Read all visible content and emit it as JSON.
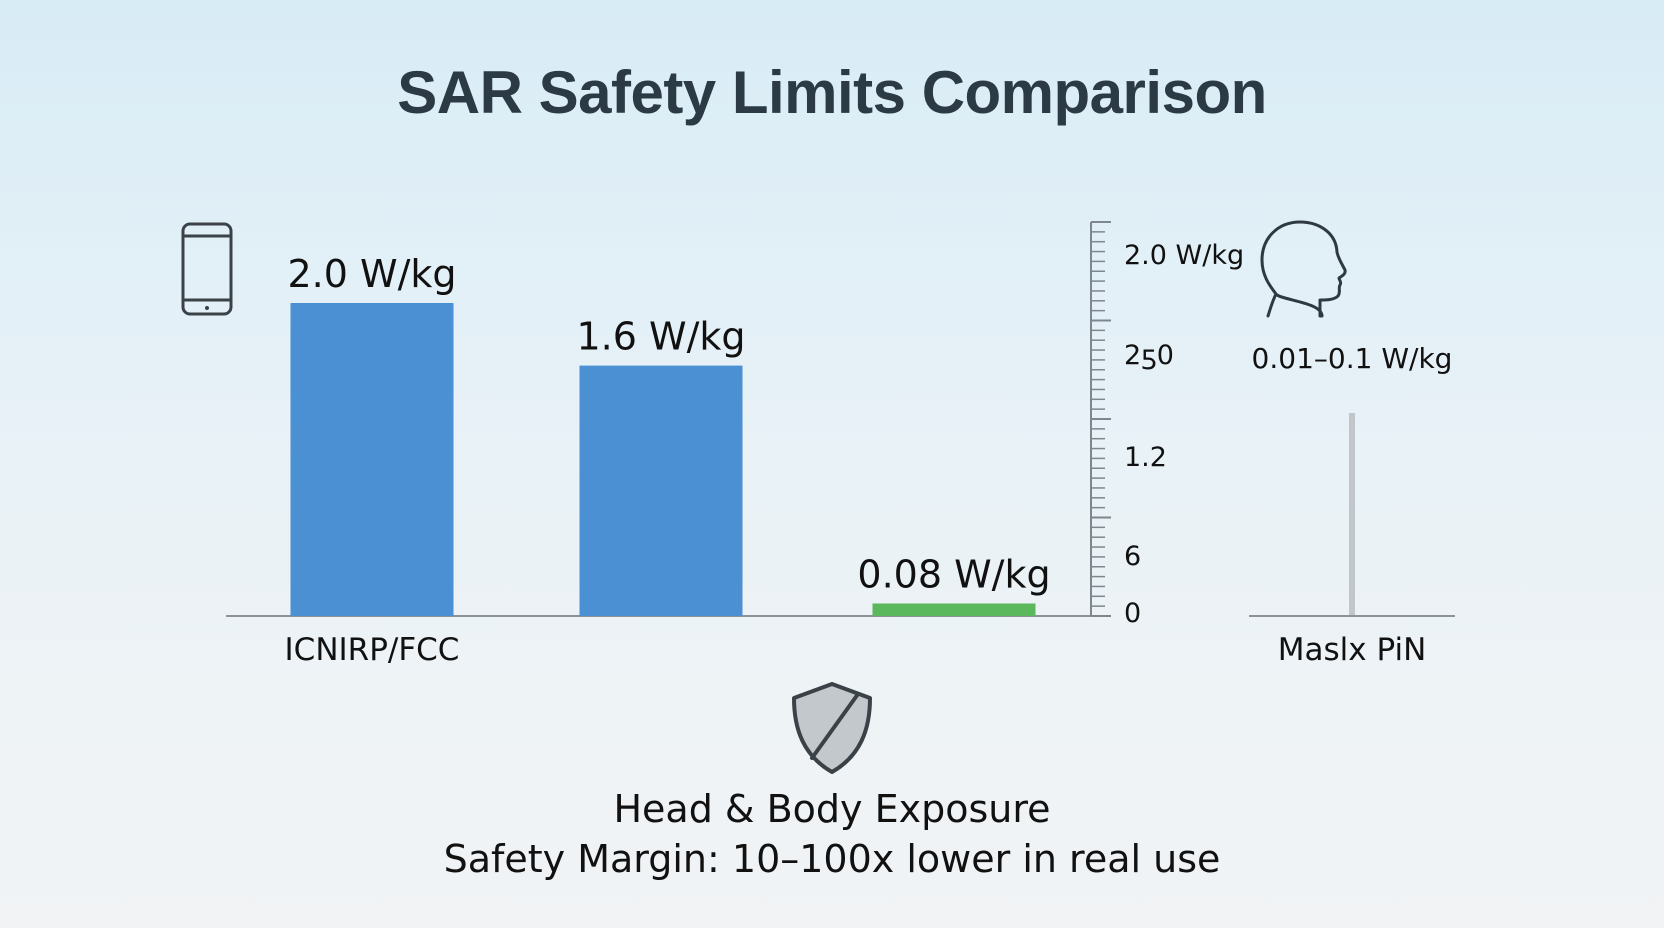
{
  "title": "SAR Safety Limits Comparison",
  "chart_data": {
    "type": "bar",
    "categories": [
      "ICNIRP/FCC",
      "",
      ""
    ],
    "values": [
      2.0,
      1.6,
      0.08
    ],
    "value_labels": [
      "2.0 W/kg",
      "1.6 W/kg",
      "0.08 W/kg"
    ],
    "bar_colors": [
      "#4a90d2",
      "#4a90d2",
      "#5cb85c"
    ],
    "ylim": [
      0,
      2.0
    ],
    "axis_ticks": [
      "2.0 W/kg",
      "2ƽ0",
      "1.2",
      "6",
      "0"
    ],
    "side_panel": {
      "value_label": "0.01–0.1 W/kg",
      "category_label": "Maslx PiN"
    },
    "grid": false,
    "legend": "none"
  },
  "icons": {
    "phone": "phone-icon",
    "head": "head-profile-icon",
    "shield": "shield-icon"
  },
  "footer": {
    "line1": "Head & Body Exposure",
    "line2": "Safety Margin: 10–100x lower in real use"
  }
}
